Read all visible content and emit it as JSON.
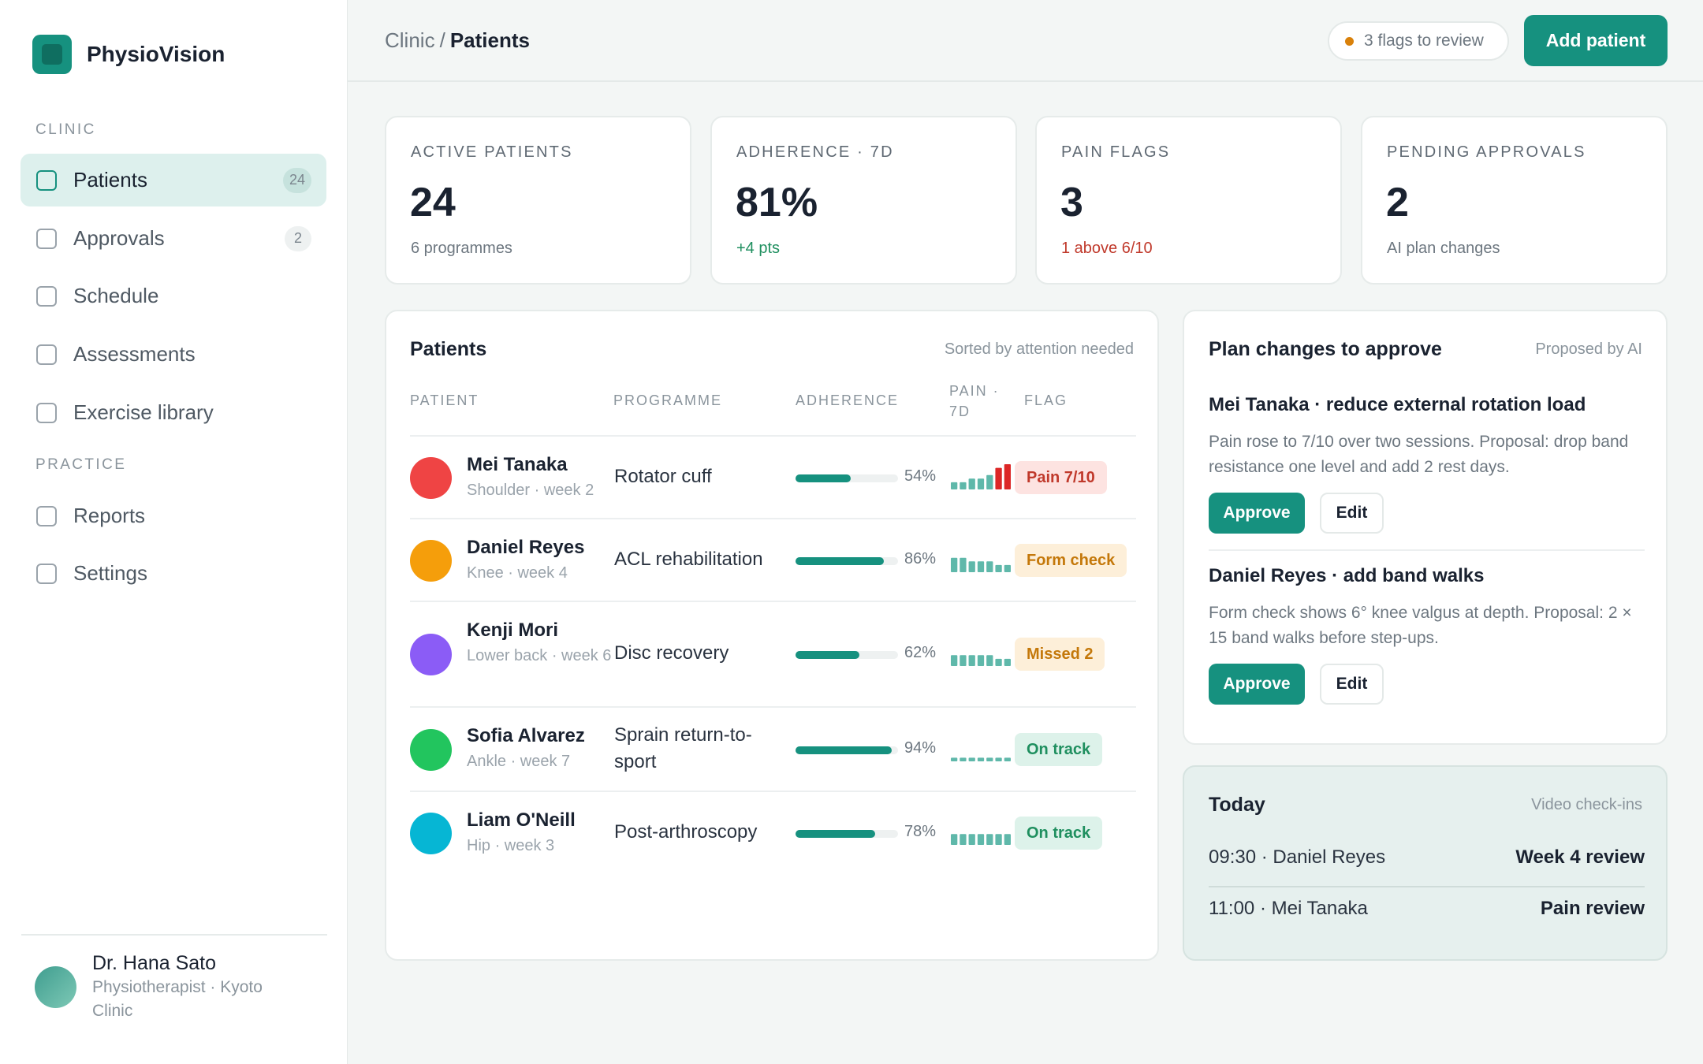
{
  "sidebar": {
    "brand": "PhysioVision",
    "sections": {
      "clinic": "CLINIC",
      "practice": "PRACTICE"
    },
    "items": [
      {
        "label": "Patients",
        "badge": "24",
        "active": true
      },
      {
        "label": "Approvals",
        "badge": "2"
      },
      {
        "label": "Schedule"
      },
      {
        "label": "Assessments"
      },
      {
        "label": "Exercise library"
      },
      {
        "label": "Reports"
      },
      {
        "label": "Settings"
      }
    ],
    "profile": {
      "name": "Dr. Hana Sato",
      "role": "Physiotherapist · Kyoto Clinic"
    }
  },
  "header": {
    "breadcrumb": {
      "parent": "Clinic",
      "separator": "/",
      "current": "Patients"
    },
    "flags_pill": "3 flags to review",
    "add_button": "Add patient"
  },
  "stats": [
    {
      "label": "ACTIVE PATIENTS",
      "value": "24",
      "sub": "6 programmes",
      "tone": "neutral"
    },
    {
      "label": "ADHERENCE · 7D",
      "value": "81%",
      "sub": "+4 pts",
      "tone": "green"
    },
    {
      "label": "PAIN FLAGS",
      "value": "3",
      "sub": "1 above 6/10",
      "tone": "red"
    },
    {
      "label": "PENDING APPROVALS",
      "value": "2",
      "sub": "AI plan changes",
      "tone": "neutral"
    }
  ],
  "patients": {
    "title": "Patients",
    "note": "Sorted by attention needed",
    "columns": {
      "patient": "PATIENT",
      "programme": "PROGRAMME",
      "adherence": "ADHERENCE",
      "pain": "PAIN · 7D",
      "flag": "FLAG"
    },
    "rows": [
      {
        "name": "Mei Tanaka",
        "sub": "Shoulder · week 2",
        "programme": "Rotator cuff",
        "adherence": 54,
        "adherence_label": "54%",
        "pain": [
          2,
          2,
          3,
          3,
          4,
          6,
          7
        ],
        "flag": "Pain 7/10",
        "flag_tone": "red",
        "avatar_color": "#ef4444"
      },
      {
        "name": "Daniel Reyes",
        "sub": "Knee · week 4",
        "programme": "ACL rehabilitation",
        "adherence": 86,
        "adherence_label": "86%",
        "pain": [
          4,
          4,
          3,
          3,
          3,
          2,
          2
        ],
        "flag": "Form check",
        "flag_tone": "amber",
        "avatar_color": "#f59e0b"
      },
      {
        "name": "Kenji Mori",
        "sub": "Lower back · week 6",
        "programme": "Disc recovery",
        "adherence": 62,
        "adherence_label": "62%",
        "pain": [
          3,
          3,
          3,
          3,
          3,
          2,
          2
        ],
        "flag": "Missed 2",
        "flag_tone": "amber",
        "avatar_color": "#8b5cf6"
      },
      {
        "name": "Sofia Alvarez",
        "sub": "Ankle · week 7",
        "programme": "Sprain return-to-sport",
        "adherence": 94,
        "adherence_label": "94%",
        "pain": [
          1,
          1,
          1,
          1,
          1,
          1,
          1
        ],
        "flag": "On track",
        "flag_tone": "green",
        "avatar_color": "#22c55e"
      },
      {
        "name": "Liam O'Neill",
        "sub": "Hip · week 3",
        "programme": "Post-arthroscopy",
        "adherence": 78,
        "adherence_label": "78%",
        "pain": [
          3,
          3,
          3,
          3,
          3,
          3,
          3
        ],
        "flag": "On track",
        "flag_tone": "green",
        "avatar_color": "#06b6d4"
      }
    ]
  },
  "plan_changes": {
    "title": "Plan changes to approve",
    "note": "Proposed by AI",
    "proposals": [
      {
        "title": "Mei Tanaka · reduce external rotation load",
        "text": "Pain rose to 7/10 over two sessions. Proposal: drop band resistance one level and add 2 rest days.",
        "approve": "Approve",
        "edit": "Edit"
      },
      {
        "title": "Daniel Reyes · add band walks",
        "text": "Form check shows 6° knee valgus at depth. Proposal: 2 × 15 band walks before step-ups.",
        "approve": "Approve",
        "edit": "Edit"
      }
    ]
  },
  "today": {
    "title": "Today",
    "note": "Video check-ins",
    "items": [
      {
        "left": "09:30 · Daniel Reyes",
        "right": "Week 4 review"
      },
      {
        "left": "11:00 · Mei Tanaka",
        "right": "Pain review"
      }
    ]
  },
  "colors": {
    "accent": "#16917f",
    "pain_high": "#dc2626",
    "spark": "#5fb8aa"
  }
}
